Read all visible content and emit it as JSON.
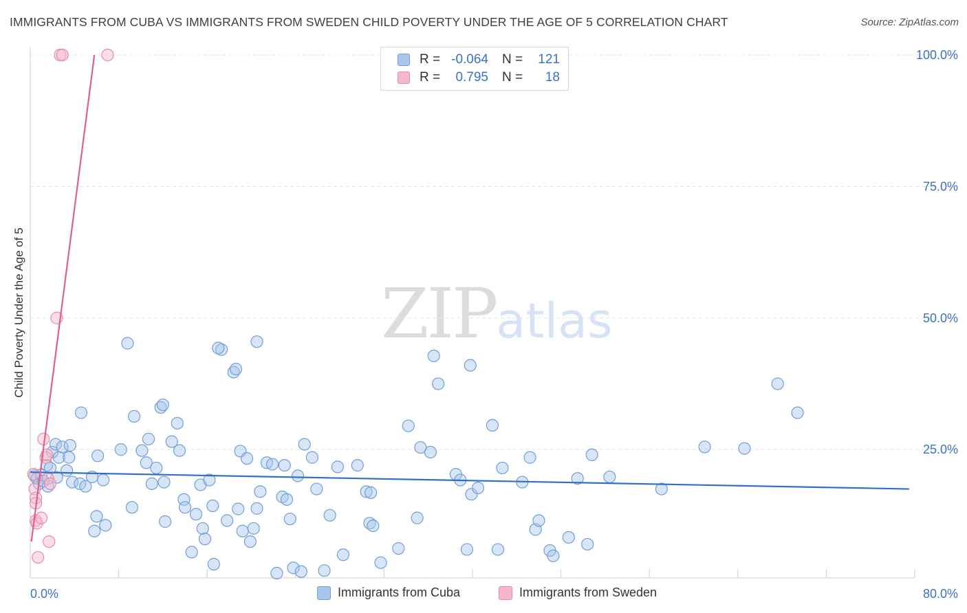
{
  "title": "IMMIGRANTS FROM CUBA VS IMMIGRANTS FROM SWEDEN CHILD POVERTY UNDER THE AGE OF 5 CORRELATION CHART",
  "source": "Source: ZipAtlas.com",
  "watermark": {
    "zip": "ZIP",
    "atlas": "atlas"
  },
  "legend": {
    "rows": [
      {
        "r_label": "R =",
        "r_value": "-0.064",
        "n_label": "N =",
        "n_value": "121"
      },
      {
        "r_label": "R =",
        "r_value": "0.795",
        "n_label": "N =",
        "n_value": "18"
      }
    ]
  },
  "bottom_legend": [
    {
      "label": "Immigrants from Cuba"
    },
    {
      "label": "Immigrants from Sweden"
    }
  ],
  "colors": {
    "cuba_fill": "#a9c6ec",
    "cuba_stroke": "#6f9fd8",
    "cuba_line": "#2f6fca",
    "sweden_fill": "#f5b8cb",
    "sweden_stroke": "#e98aa8",
    "sweden_line": "#e0608c",
    "tick_label": "#3a72c4",
    "grid": "#e4e4e4"
  },
  "chart_data": {
    "type": "scatter",
    "title": "IMMIGRANTS FROM CUBA VS IMMIGRANTS FROM SWEDEN CHILD POVERTY UNDER THE AGE OF 5 CORRELATION CHART",
    "xlabel": "",
    "ylabel": "Child Poverty Under the Age of 5",
    "xlim": [
      0,
      80
    ],
    "ylim": [
      0,
      105
    ],
    "x_tick_labels": [
      {
        "value": 0,
        "label": "0.0%"
      },
      {
        "value": 80,
        "label": "80.0%"
      }
    ],
    "y_tick_labels": [
      {
        "value": 25,
        "label": "25.0%"
      },
      {
        "value": 50,
        "label": "50.0%"
      },
      {
        "value": 75,
        "label": "75.0%"
      },
      {
        "value": 100,
        "label": "100.0%"
      }
    ],
    "series": [
      {
        "name": "Immigrants from Cuba",
        "r": -0.064,
        "n": 121,
        "trend": {
          "x": [
            0,
            79.5
          ],
          "y": [
            20.7,
            17.5
          ]
        },
        "points": [
          [
            0.4,
            20.0
          ],
          [
            0.6,
            19.5
          ],
          [
            0.8,
            18.5
          ],
          [
            1.0,
            20.2
          ],
          [
            1.2,
            19.0
          ],
          [
            1.5,
            22.0
          ],
          [
            2.0,
            24.5
          ],
          [
            2.3,
            26.0
          ],
          [
            2.6,
            23.5
          ],
          [
            2.9,
            25.5
          ],
          [
            3.5,
            23.5
          ],
          [
            3.6,
            25.8
          ],
          [
            3.3,
            21.0
          ],
          [
            2.4,
            19.7
          ],
          [
            1.8,
            21.5
          ],
          [
            3.8,
            18.8
          ],
          [
            4.5,
            18.5
          ],
          [
            5.0,
            18.0
          ],
          [
            5.6,
            19.8
          ],
          [
            6.6,
            19.2
          ],
          [
            4.6,
            32.0
          ],
          [
            6.0,
            12.3
          ],
          [
            6.1,
            23.8
          ],
          [
            5.8,
            9.5
          ],
          [
            6.8,
            10.6
          ],
          [
            8.2,
            25.0
          ],
          [
            8.8,
            45.2
          ],
          [
            9.4,
            31.3
          ],
          [
            10.1,
            24.8
          ],
          [
            10.5,
            22.5
          ],
          [
            10.7,
            27.0
          ],
          [
            11.0,
            18.5
          ],
          [
            11.4,
            21.5
          ],
          [
            12.1,
            18.8
          ],
          [
            12.2,
            11.3
          ],
          [
            12.8,
            26.5
          ],
          [
            13.5,
            24.8
          ],
          [
            11.8,
            33.0
          ],
          [
            12.0,
            33.5
          ],
          [
            13.3,
            30.0
          ],
          [
            9.2,
            14.0
          ],
          [
            13.9,
            15.5
          ],
          [
            14.0,
            14.0
          ],
          [
            14.6,
            5.5
          ],
          [
            15.0,
            12.7
          ],
          [
            15.4,
            18.3
          ],
          [
            15.6,
            10.0
          ],
          [
            15.8,
            8.0
          ],
          [
            16.2,
            19.2
          ],
          [
            16.5,
            14.3
          ],
          [
            16.6,
            3.2
          ],
          [
            17.3,
            44.0
          ],
          [
            17.0,
            44.3
          ],
          [
            17.8,
            11.5
          ],
          [
            18.4,
            39.7
          ],
          [
            18.6,
            40.3
          ],
          [
            18.8,
            13.7
          ],
          [
            19.0,
            24.7
          ],
          [
            19.2,
            9.5
          ],
          [
            19.6,
            23.3
          ],
          [
            19.9,
            7.5
          ],
          [
            20.2,
            10.0
          ],
          [
            20.5,
            13.8
          ],
          [
            20.8,
            17.0
          ],
          [
            20.5,
            45.5
          ],
          [
            21.4,
            22.5
          ],
          [
            21.9,
            22.2
          ],
          [
            22.3,
            1.5
          ],
          [
            22.8,
            16.0
          ],
          [
            23.0,
            22.0
          ],
          [
            23.2,
            15.5
          ],
          [
            23.5,
            11.8
          ],
          [
            23.8,
            2.5
          ],
          [
            24.2,
            20.0
          ],
          [
            24.8,
            26.0
          ],
          [
            24.5,
            1.8
          ],
          [
            25.5,
            23.5
          ],
          [
            25.9,
            17.5
          ],
          [
            26.6,
            2.0
          ],
          [
            27.1,
            12.5
          ],
          [
            27.8,
            21.7
          ],
          [
            28.3,
            5.0
          ],
          [
            29.6,
            22.0
          ],
          [
            30.4,
            17.0
          ],
          [
            30.7,
            11.0
          ],
          [
            30.8,
            16.8
          ],
          [
            31.0,
            10.5
          ],
          [
            31.7,
            3.5
          ],
          [
            33.3,
            6.2
          ],
          [
            34.2,
            29.5
          ],
          [
            35.0,
            12.0
          ],
          [
            35.3,
            25.4
          ],
          [
            36.2,
            24.5
          ],
          [
            36.5,
            42.8
          ],
          [
            36.9,
            37.5
          ],
          [
            38.5,
            20.3
          ],
          [
            38.9,
            19.2
          ],
          [
            39.5,
            6.0
          ],
          [
            39.8,
            41.0
          ],
          [
            39.9,
            16.5
          ],
          [
            40.5,
            17.7
          ],
          [
            41.8,
            29.6
          ],
          [
            42.3,
            6.0
          ],
          [
            42.7,
            21.5
          ],
          [
            44.5,
            18.8
          ],
          [
            45.2,
            23.5
          ],
          [
            45.7,
            9.8
          ],
          [
            46.0,
            11.5
          ],
          [
            47.0,
            5.8
          ],
          [
            47.3,
            4.8
          ],
          [
            48.7,
            8.3
          ],
          [
            49.5,
            19.5
          ],
          [
            50.4,
            7.0
          ],
          [
            50.8,
            24.0
          ],
          [
            52.4,
            19.8
          ],
          [
            57.1,
            17.5
          ],
          [
            61.0,
            25.5
          ],
          [
            64.6,
            25.2
          ],
          [
            67.6,
            37.5
          ],
          [
            69.4,
            32.0
          ],
          [
            1.6,
            18.0
          ]
        ]
      },
      {
        "name": "Immigrants from Sweden",
        "r": 0.795,
        "n": 18,
        "trend": {
          "x": [
            0.1,
            5.8
          ],
          "y": [
            7.5,
            100
          ]
        },
        "points": [
          [
            0.3,
            20.3
          ],
          [
            0.4,
            17.5
          ],
          [
            0.5,
            15.8
          ],
          [
            0.5,
            14.8
          ],
          [
            0.5,
            11.5
          ],
          [
            0.6,
            11.0
          ],
          [
            0.7,
            4.5
          ],
          [
            1.0,
            12.0
          ],
          [
            1.2,
            27.0
          ],
          [
            1.4,
            23.5
          ],
          [
            1.5,
            24.0
          ],
          [
            1.6,
            19.5
          ],
          [
            1.7,
            7.5
          ],
          [
            1.8,
            18.5
          ],
          [
            2.4,
            50.0
          ],
          [
            2.7,
            100.0
          ],
          [
            2.9,
            100.0
          ],
          [
            7.0,
            100.0
          ]
        ]
      }
    ]
  }
}
